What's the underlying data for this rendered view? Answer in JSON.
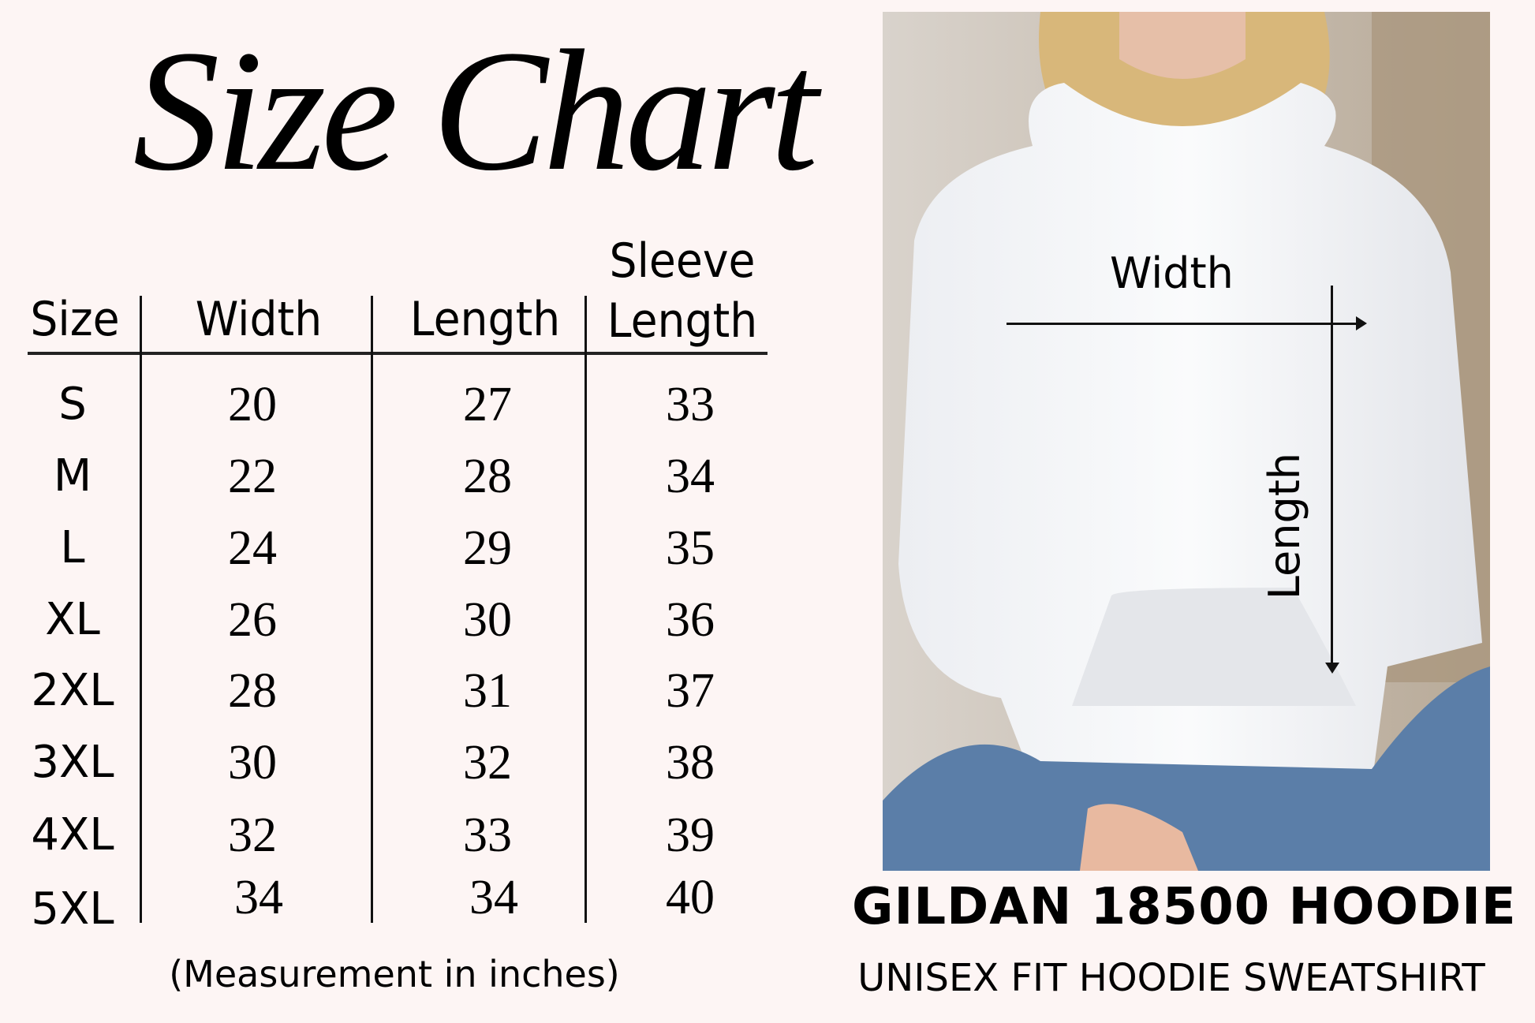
{
  "title": "Size Chart",
  "table": {
    "headers": {
      "size": "Size",
      "width": "Width",
      "length": "Length",
      "sleeve_line1": "Sleeve",
      "sleeve_line2": "Length"
    },
    "rows": [
      {
        "size": "S",
        "width": "20",
        "length": "27",
        "sleeve": "33"
      },
      {
        "size": "M",
        "width": "22",
        "length": "28",
        "sleeve": "34"
      },
      {
        "size": "L",
        "width": "24",
        "length": "29",
        "sleeve": "35"
      },
      {
        "size": "XL",
        "width": "26",
        "length": "30",
        "sleeve": "36"
      },
      {
        "size": "2XL",
        "width": "28",
        "length": "31",
        "sleeve": "37"
      },
      {
        "size": "3XL",
        "width": "30",
        "length": "32",
        "sleeve": "38"
      },
      {
        "size": "4XL",
        "width": "32",
        "length": "33",
        "sleeve": "39"
      },
      {
        "size": "5XL",
        "width": "34",
        "length": "34",
        "sleeve": "40"
      }
    ]
  },
  "note": "(Measurement in inches)",
  "photo": {
    "width_label": "Width",
    "length_label": "Length"
  },
  "product": {
    "name": "GILDAN 18500 HOODIE",
    "subtitle": "UNISEX FIT HOODIE SWEATSHIRT"
  },
  "colors": {
    "background": "#fdf5f4",
    "text": "#000000"
  }
}
